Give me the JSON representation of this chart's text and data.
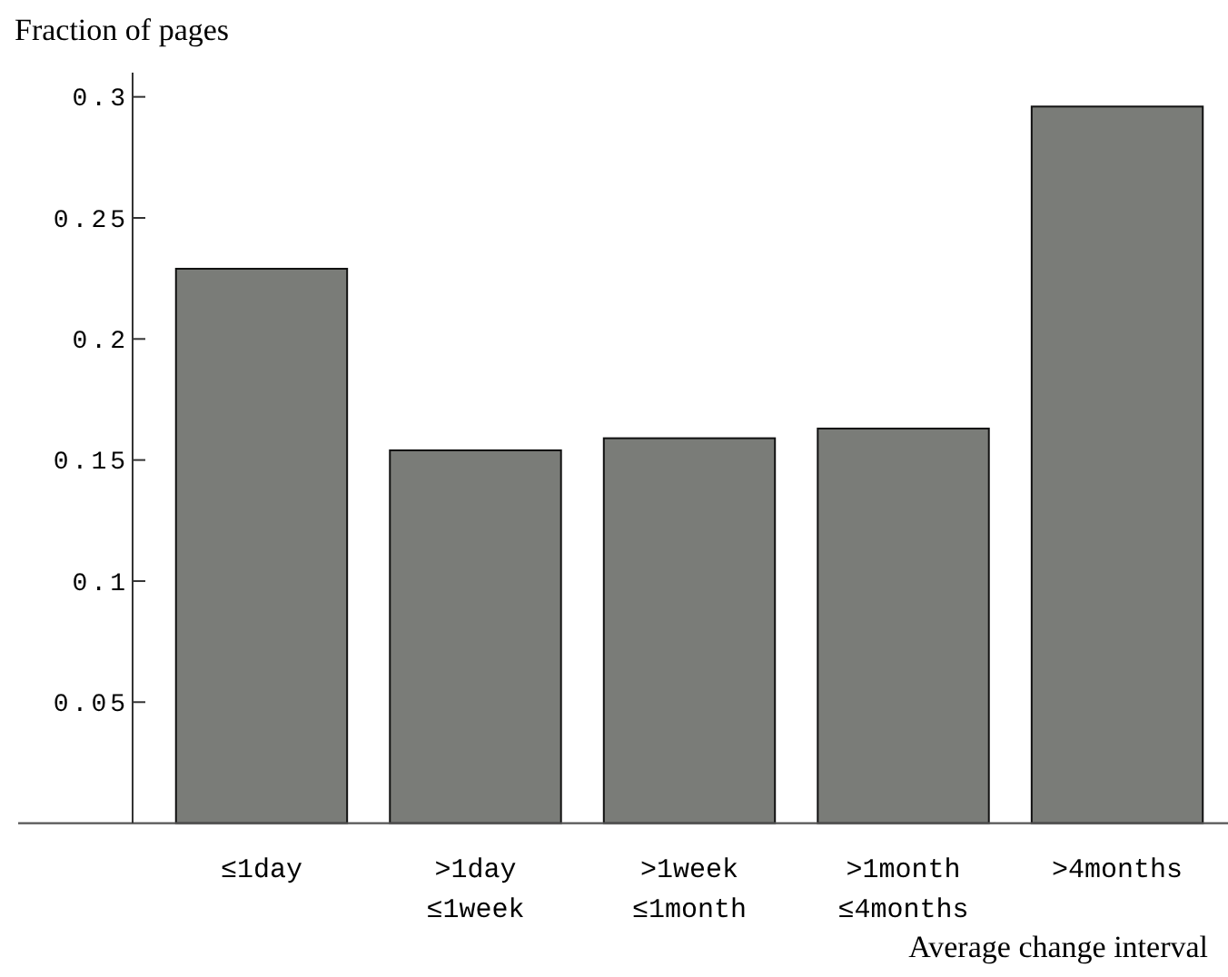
{
  "chart_data": {
    "type": "bar",
    "ylabel": "Fraction of pages",
    "xlabel": "Average change interval",
    "categories": [
      "≤1day",
      ">1day\n≤1week",
      ">1week\n≤1month",
      ">1month\n≤4months",
      ">4months"
    ],
    "values": [
      0.229,
      0.154,
      0.159,
      0.163,
      0.296
    ],
    "color": "#7a7c78",
    "ylim": [
      0,
      0.31
    ],
    "yticks": [
      0.05,
      0.1,
      0.15,
      0.2,
      0.25,
      0.3
    ],
    "grid": false
  }
}
